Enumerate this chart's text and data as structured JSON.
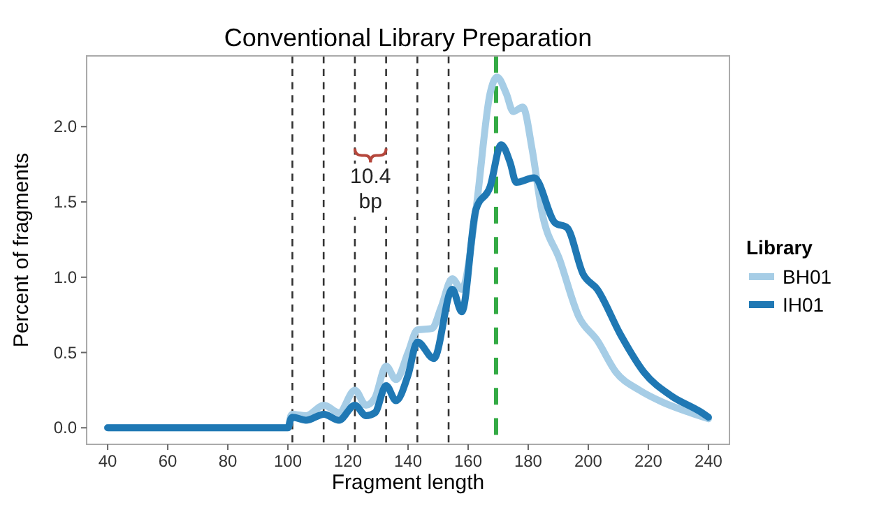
{
  "chart_data": {
    "type": "line",
    "title": "Conventional Library Preparation",
    "xlabel": "Fragment length",
    "ylabel": "Percent of fragments",
    "legend_title": "Library",
    "legend": "right",
    "grid": false,
    "line_style": "solid",
    "marker": "none",
    "xlim": [
      33,
      247
    ],
    "ylim": [
      -0.11,
      2.47
    ],
    "xticks": [
      40,
      60,
      80,
      100,
      120,
      140,
      160,
      180,
      200,
      220,
      240
    ],
    "yticks": [
      {
        "value": 0,
        "label": "0.0"
      },
      {
        "value": 0.5,
        "label": "0.5"
      },
      {
        "value": 1,
        "label": "1.0"
      },
      {
        "value": 1.5,
        "label": "1.5"
      },
      {
        "value": 2,
        "label": "2.0"
      }
    ],
    "series": [
      {
        "name": "BH01",
        "color": "#a6cde6",
        "x": [
          40,
          100,
          101,
          101.5,
          106,
          112,
          117,
          122.3,
          126,
          129,
          132.7,
          136,
          140,
          143.1,
          148,
          151,
          154.7,
          157.9,
          162.6,
          167.3,
          169.6,
          172.7,
          175,
          178.2,
          181.3,
          184.4,
          190.6,
          196.8,
          203,
          209.2,
          217,
          224.7,
          234,
          240
        ],
        "values": [
          0,
          0,
          0.08,
          0.09,
          0.08,
          0.15,
          0.1,
          0.25,
          0.15,
          0.2,
          0.41,
          0.32,
          0.5,
          0.65,
          0.66,
          0.8,
          0.99,
          0.92,
          1.45,
          2.22,
          2.33,
          2.22,
          2.1,
          2.13,
          1.85,
          1.45,
          1.11,
          0.74,
          0.58,
          0.37,
          0.25,
          0.17,
          0.1,
          0.06
        ]
      },
      {
        "name": "IH01",
        "color": "#1f78b4",
        "x": [
          40,
          100,
          101,
          101.5,
          106,
          112,
          117,
          122.3,
          126,
          129,
          132.7,
          136,
          140,
          143.1,
          148.6,
          154.7,
          157.9,
          162.6,
          167.3,
          171,
          174,
          176,
          182,
          189,
          192.9,
          198.3,
          203,
          210.7,
          218.5,
          227.8,
          237,
          240
        ],
        "values": [
          0,
          0,
          0.06,
          0.07,
          0.05,
          0.09,
          0.05,
          0.15,
          0.08,
          0.1,
          0.28,
          0.18,
          0.35,
          0.57,
          0.46,
          0.92,
          0.77,
          1.45,
          1.6,
          1.88,
          1.76,
          1.63,
          1.66,
          1.36,
          1.33,
          1.02,
          0.92,
          0.62,
          0.37,
          0.21,
          0.11,
          0.07
        ]
      }
    ],
    "ref_lines": [
      {
        "axis": "x",
        "value": 101.5,
        "color": "#333333",
        "line_style": "dashed"
      },
      {
        "axis": "x",
        "value": 111.9,
        "color": "#333333",
        "line_style": "dashed"
      },
      {
        "axis": "x",
        "value": 122.3,
        "color": "#333333",
        "line_style": "dashed"
      },
      {
        "axis": "x",
        "value": 132.7,
        "color": "#333333",
        "line_style": "dashed"
      },
      {
        "axis": "x",
        "value": 143.1,
        "color": "#333333",
        "line_style": "dashed"
      },
      {
        "axis": "x",
        "value": 153.5,
        "color": "#333333",
        "line_style": "dashed"
      },
      {
        "axis": "x",
        "value": 169.3,
        "color": "#33aa44",
        "line_style": "dashed"
      }
    ],
    "annotations": [
      {
        "text": "10.4 bp",
        "x": 127.5,
        "y": 1.8
      }
    ]
  }
}
